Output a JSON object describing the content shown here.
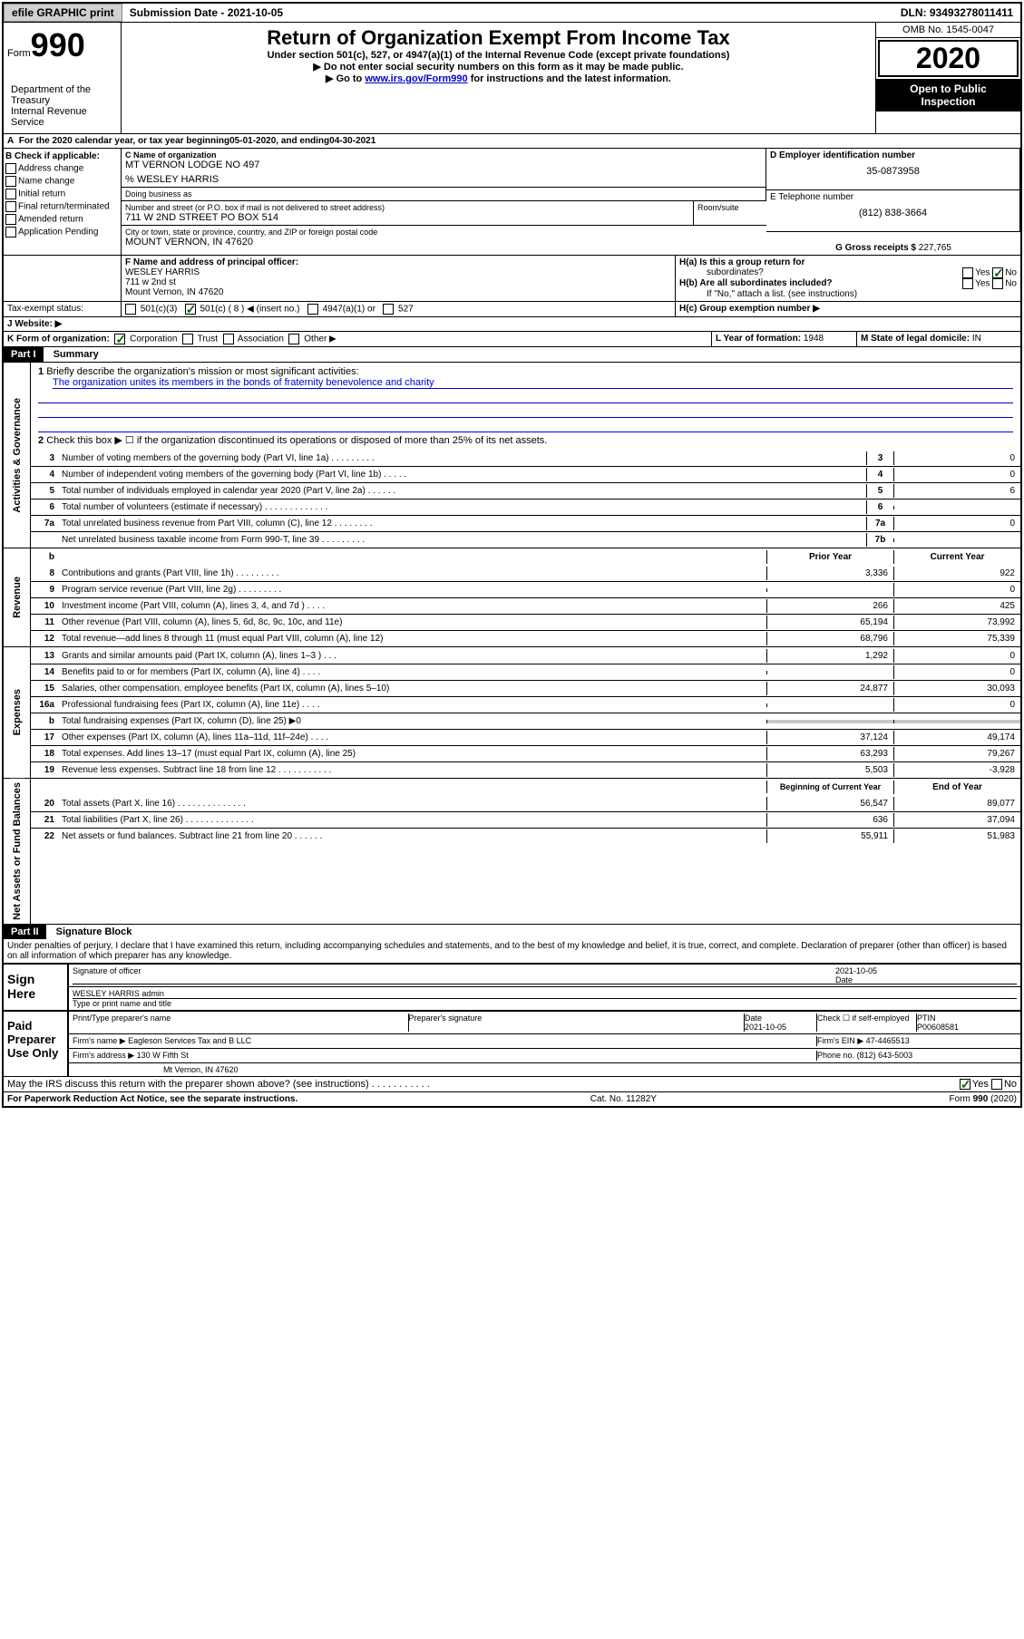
{
  "topbar": {
    "efile": "efile GRAPHIC print",
    "sub_label": "Submission Date - 2021-10-05",
    "dln": "DLN: 93493278011411"
  },
  "header": {
    "form_prefix": "Form",
    "form_num": "990",
    "title": "Return of Organization Exempt From Income Tax",
    "subtitle": "Under section 501(c), 527, or 4947(a)(1) of the Internal Revenue Code (except private foundations)",
    "note1": "▶ Do not enter social security numbers on this form as it may be made public.",
    "note2_pre": "▶ Go to ",
    "note2_link": "www.irs.gov/Form990",
    "note2_post": " for instructions and the latest information.",
    "dept": "Department of the Treasury\nInternal Revenue Service",
    "omb": "OMB No. 1545-0047",
    "year": "2020",
    "inspect1": "Open to Public",
    "inspect2": "Inspection"
  },
  "sectionA": {
    "text_pre": "For the 2020 calendar year, or tax year beginning ",
    "begin": "05-01-2020",
    "text_mid": " , and ending ",
    "end": "04-30-2021"
  },
  "sectionB": {
    "label": "B Check if applicable:",
    "items": [
      "Address change",
      "Name change",
      "Initial return",
      "Final return/terminated",
      "Amended return",
      "Application Pending"
    ]
  },
  "sectionC": {
    "name_label": "C Name of organization",
    "name": "MT VERNON LODGE NO 497",
    "care_of": "% WESLEY HARRIS",
    "dba_label": "Doing business as",
    "addr_label": "Number and street (or P.O. box if mail is not delivered to street address)",
    "room_label": "Room/suite",
    "addr": "711 W 2ND STREET PO BOX 514",
    "city_label": "City or town, state or province, country, and ZIP or foreign postal code",
    "city": "MOUNT VERNON, IN  47620"
  },
  "sectionD": {
    "label": "D Employer identification number",
    "val": "35-0873958"
  },
  "sectionE": {
    "label": "E Telephone number",
    "val": "(812) 838-3664"
  },
  "sectionG": {
    "label": "G Gross receipts $",
    "val": "227,765"
  },
  "sectionF": {
    "label": "F Name and address of principal officer:",
    "name": "WESLEY HARRIS",
    "addr1": "711 w 2nd st",
    "addr2": "Mount Vernon, IN  47620"
  },
  "sectionH": {
    "a_label": "H(a)  Is this a group return for",
    "a_sub": "subordinates?",
    "b_label": "H(b)  Are all subordinates included?",
    "b_note": "If \"No,\" attach a list. (see instructions)",
    "c_label": "H(c)  Group exemption number ▶"
  },
  "sectionI": {
    "label": "Tax-exempt status:",
    "opts": [
      "501(c)(3)",
      "501(c) ( 8 ) ◀ (insert no.)",
      "4947(a)(1) or",
      "527"
    ]
  },
  "sectionJ": {
    "label": "J    Website: ▶"
  },
  "sectionK": {
    "label": "K Form of organization:",
    "opts": [
      "Corporation",
      "Trust",
      "Association",
      "Other ▶"
    ]
  },
  "sectionL": {
    "label": "L Year of formation:",
    "val": "1948"
  },
  "sectionM": {
    "label": "M State of legal domicile:",
    "val": "IN"
  },
  "part1": {
    "hdr": "Part I",
    "title": "Summary",
    "q1_label": "Briefly describe the organization's mission or most significant activities:",
    "q1_val": "The organization unites its members in the bonds of fraternity benevolence and charity",
    "q2": "Check this box ▶ ☐  if the organization discontinued its operations or disposed of more than 25% of its net assets.",
    "govLabel": "Activities & Governance",
    "revLabel": "Revenue",
    "expLabel": "Expenses",
    "netLabel": "Net Assets or Fund Balances",
    "govLines": [
      {
        "n": "3",
        "t": "Number of voting members of the governing body (Part VI, line 1a)  .   .   .   .   .   .   .   .   .",
        "b": "3",
        "v": "0"
      },
      {
        "n": "4",
        "t": "Number of independent voting members of the governing body (Part VI, line 1b)  .   .   .   .   .",
        "b": "4",
        "v": "0"
      },
      {
        "n": "5",
        "t": "Total number of individuals employed in calendar year 2020 (Part V, line 2a)  .   .   .   .   .   .",
        "b": "5",
        "v": "6"
      },
      {
        "n": "6",
        "t": "Total number of volunteers (estimate if necessary)   .   .   .   .   .   .   .   .   .   .   .   .   .",
        "b": "6",
        "v": ""
      },
      {
        "n": "7a",
        "t": "Total unrelated business revenue from Part VIII, column (C), line 12  .   .   .   .   .   .   .   .",
        "b": "7a",
        "v": "0"
      },
      {
        "n": "",
        "t": "Net unrelated business taxable income from Form 990-T, line 39  .   .   .   .   .   .   .   .   .",
        "b": "7b",
        "v": ""
      }
    ],
    "colHdr": {
      "b": "b",
      "prior": "Prior Year",
      "curr": "Current Year"
    },
    "revLines": [
      {
        "n": "8",
        "t": "Contributions and grants (Part VIII, line 1h)   .   .   .   .   .   .   .   .   .",
        "p": "3,336",
        "c": "922"
      },
      {
        "n": "9",
        "t": "Program service revenue (Part VIII, line 2g)   .   .   .   .   .   .   .   .   .",
        "p": "",
        "c": "0"
      },
      {
        "n": "10",
        "t": "Investment income (Part VIII, column (A), lines 3, 4, and 7d )   .   .   .   .",
        "p": "266",
        "c": "425"
      },
      {
        "n": "11",
        "t": "Other revenue (Part VIII, column (A), lines 5, 6d, 8c, 9c, 10c, and 11e)",
        "p": "65,194",
        "c": "73,992"
      },
      {
        "n": "12",
        "t": "Total revenue—add lines 8 through 11 (must equal Part VIII, column (A), line 12)",
        "p": "68,796",
        "c": "75,339"
      }
    ],
    "expLines": [
      {
        "n": "13",
        "t": "Grants and similar amounts paid (Part IX, column (A), lines 1–3 )   .   .   .",
        "p": "1,292",
        "c": "0"
      },
      {
        "n": "14",
        "t": "Benefits paid to or for members (Part IX, column (A), line 4)   .   .   .   .",
        "p": "",
        "c": "0"
      },
      {
        "n": "15",
        "t": "Salaries, other compensation, employee benefits (Part IX, column (A), lines 5–10)",
        "p": "24,877",
        "c": "30,093"
      },
      {
        "n": "16a",
        "t": "Professional fundraising fees (Part IX, column (A), line 11e)   .   .   .   .",
        "p": "",
        "c": "0"
      },
      {
        "n": "b",
        "t": "Total fundraising expenses (Part IX, column (D), line 25) ▶0",
        "p": "shade",
        "c": "shade"
      },
      {
        "n": "17",
        "t": "Other expenses (Part IX, column (A), lines 11a–11d, 11f–24e)   .   .   .   .",
        "p": "37,124",
        "c": "49,174"
      },
      {
        "n": "18",
        "t": "Total expenses. Add lines 13–17 (must equal Part IX, column (A), line 25)",
        "p": "63,293",
        "c": "79,267"
      },
      {
        "n": "19",
        "t": "Revenue less expenses. Subtract line 18 from line 12  .   .   .   .   .   .   .   .   .   .   .",
        "p": "5,503",
        "c": "-3,928"
      }
    ],
    "netHdr": {
      "prior": "Beginning of Current Year",
      "curr": "End of Year"
    },
    "netLines": [
      {
        "n": "20",
        "t": "Total assets (Part X, line 16)   .   .   .   .   .   .   .   .   .   .   .   .   .   .",
        "p": "56,547",
        "c": "89,077"
      },
      {
        "n": "21",
        "t": "Total liabilities (Part X, line 26)  .   .   .   .   .   .   .   .   .   .   .   .   .   .",
        "p": "636",
        "c": "37,094"
      },
      {
        "n": "22",
        "t": "Net assets or fund balances. Subtract line 21 from line 20  .   .   .   .   .   .",
        "p": "55,911",
        "c": "51,983"
      }
    ]
  },
  "part2": {
    "hdr": "Part II",
    "title": "Signature Block",
    "decl": "Under penalties of perjury, I declare that I have examined this return, including accompanying schedules and statements, and to the best of my knowledge and belief, it is true, correct, and complete. Declaration of preparer (other than officer) is based on all information of which preparer has any knowledge."
  },
  "sign": {
    "label": "Sign Here",
    "officer_sig": "Signature of officer",
    "date_label": "Date",
    "date_val": "2021-10-05",
    "officer_name": "WESLEY HARRIS  admin",
    "type_label": "Type or print name and title"
  },
  "preparer": {
    "label": "Paid Preparer Use Only",
    "print_label": "Print/Type preparer's name",
    "sig_label": "Preparer's signature",
    "date_label": "Date",
    "date_val": "2021-10-05",
    "check_label": "Check ☐ if self-employed",
    "ptin_label": "PTIN",
    "ptin_val": "P00608581",
    "firm_name_label": "Firm's name    ▶",
    "firm_name": "Eagleson Services Tax and B LLC",
    "firm_ein_label": "Firm's EIN ▶",
    "firm_ein": "47-4465513",
    "firm_addr_label": "Firm's address ▶",
    "firm_addr1": "130 W Fifth St",
    "firm_addr2": "Mt Vernon, IN  47620",
    "phone_label": "Phone no.",
    "phone": "(812) 643-5003"
  },
  "discuss": {
    "text": "May the IRS discuss this return with the preparer shown above? (see instructions)   .   .   .   .   .   .   .   .   .   .   .",
    "yes": "Yes",
    "no": "No"
  },
  "footer": {
    "left": "For Paperwork Reduction Act Notice, see the separate instructions.",
    "mid": "Cat. No. 11282Y",
    "right": "Form 990 (2020)"
  }
}
